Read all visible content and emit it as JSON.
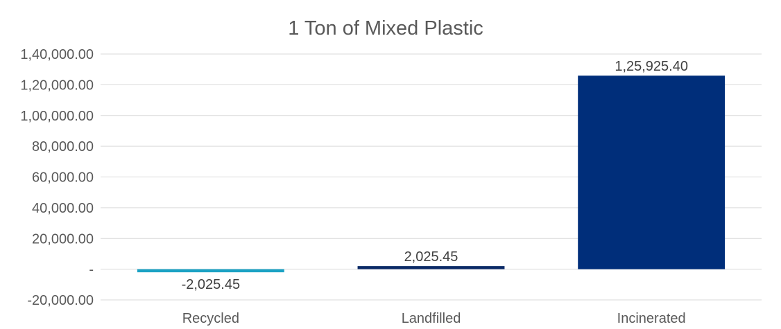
{
  "chart_data": {
    "type": "bar",
    "title": "1 Ton of Mixed Plastic",
    "xlabel": "",
    "ylabel": "",
    "categories": [
      "Recycled",
      "Landfilled",
      "Incinerated"
    ],
    "values": [
      -2025.45,
      2025.45,
      125925.4
    ],
    "data_labels": [
      "-2,025.45",
      "2,025.45",
      "1,25,925.40"
    ],
    "bar_colors": [
      "#1ba2c4",
      "#0b2a67",
      "#002e7a"
    ],
    "ylim": [
      -20000,
      140000
    ],
    "yticks": [
      -20000,
      0,
      20000,
      40000,
      60000,
      80000,
      100000,
      120000,
      140000
    ],
    "ytick_labels": [
      "-20,000.00",
      "-",
      "20,000.00",
      "40,000.00",
      "60,000.00",
      "80,000.00",
      "1,00,000.00",
      "1,20,000.00",
      "1,40,000.00"
    ],
    "grid": true,
    "legend": "none"
  }
}
